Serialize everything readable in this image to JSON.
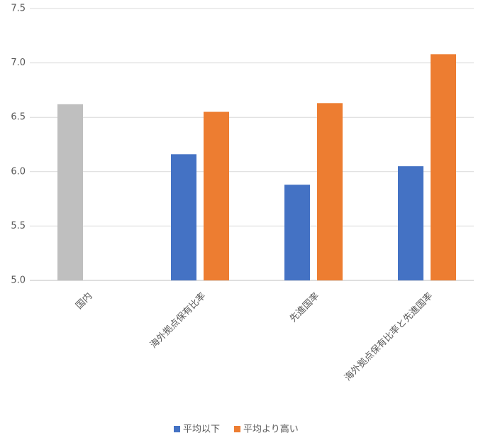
{
  "chart_data": {
    "type": "bar",
    "categories": [
      "国内",
      "海外拠点保有比率",
      "先進国率",
      "海外拠点保有比率と先進国率"
    ],
    "series": [
      {
        "name": "平均以下",
        "color": "#4472c4",
        "colors": [
          "#bfbfbf",
          "#4472c4",
          "#4472c4",
          "#4472c4"
        ],
        "values": [
          6.62,
          6.16,
          5.88,
          6.05
        ]
      },
      {
        "name": "平均より高い",
        "color": "#ed7d31",
        "values": [
          null,
          6.55,
          6.63,
          7.08
        ]
      }
    ],
    "ylim": [
      5,
      7.5
    ],
    "yticks": [
      {
        "value": 5,
        "label": "5.0"
      },
      {
        "value": 5.5,
        "label": "5.5"
      },
      {
        "value": 6,
        "label": "6.0"
      },
      {
        "value": 6.5,
        "label": "6.5"
      },
      {
        "value": 7,
        "label": "7.0"
      },
      {
        "value": 7.5,
        "label": "7.5"
      }
    ],
    "grid": true,
    "legend": "bottom"
  }
}
